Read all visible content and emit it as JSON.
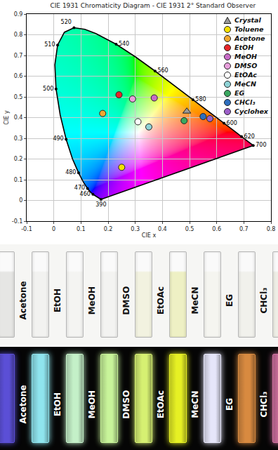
{
  "chart_data": {
    "type": "scatter",
    "title": "CIE 1931 Chromaticity Diagram - CIE 1931 2° Standard Observer",
    "x_label": "CIE x",
    "y_label": "CIE y",
    "xlim": [
      -0.1,
      0.8
    ],
    "xticks": [
      -0.1,
      0,
      0.1,
      0.2,
      0.3,
      0.4,
      0.5,
      0.6,
      0.7,
      0.8
    ],
    "ylim": [
      -0.1,
      0.9
    ],
    "yticks": [
      -0.1,
      0,
      0.1,
      0.2,
      0.3,
      0.4,
      0.5,
      0.6,
      0.7,
      0.8,
      0.9
    ],
    "grid": true,
    "legend": "upper right",
    "locus": {
      "labels": [
        390,
        460,
        null,
        470,
        null,
        480,
        null,
        490,
        null,
        500,
        null,
        510,
        null,
        520,
        null,
        null,
        540,
        null,
        560,
        null,
        580,
        null,
        600,
        null,
        620,
        null,
        700
      ],
      "x": [
        0.1738,
        0.144,
        0.1355,
        0.1241,
        0.1096,
        0.0913,
        0.0687,
        0.0454,
        0.0235,
        0.0082,
        0.0039,
        0.0139,
        0.0389,
        0.0743,
        0.1142,
        0.1547,
        0.2296,
        0.3016,
        0.3731,
        0.4441,
        0.5125,
        0.5752,
        0.627,
        0.6658,
        0.6915,
        0.719,
        0.7347
      ],
      "y": [
        0.0049,
        0.0297,
        0.0399,
        0.0578,
        0.0868,
        0.1327,
        0.2007,
        0.295,
        0.4127,
        0.5384,
        0.6548,
        0.7502,
        0.812,
        0.8338,
        0.8262,
        0.8059,
        0.7543,
        0.6923,
        0.6245,
        0.5547,
        0.4866,
        0.4242,
        0.3725,
        0.334,
        0.3083,
        0.2809,
        0.2653
      ]
    },
    "series": [
      {
        "name": "Crystal",
        "color": "#9a9a9a",
        "marker": "triangle-up",
        "x": [
          0.49
        ],
        "y": [
          0.43
        ]
      },
      {
        "name": "Toluene",
        "color": "#f5e000",
        "marker": "circle",
        "x": [
          0.25
        ],
        "y": [
          0.16
        ]
      },
      {
        "name": "Acetone",
        "color": "#f0a830",
        "marker": "circle",
        "x": [
          0.18
        ],
        "y": [
          0.42
        ]
      },
      {
        "name": "EtOH",
        "color": "#e8262a",
        "marker": "circle",
        "x": [
          0.24
        ],
        "y": [
          0.51
        ]
      },
      {
        "name": "MeOH",
        "color": "#c86cc8",
        "marker": "circle",
        "x": [
          0.37
        ],
        "y": [
          0.495
        ]
      },
      {
        "name": "DMSO",
        "color": "#e8a0dc",
        "marker": "circle",
        "x": [
          0.29
        ],
        "y": [
          0.49
        ]
      },
      {
        "name": "EtOAc",
        "color": "#ffffff",
        "marker": "circle",
        "x": [
          0.31
        ],
        "y": [
          0.38
        ]
      },
      {
        "name": "MeCN",
        "color": "#8fd3d6",
        "marker": "circle",
        "x": [
          0.35
        ],
        "y": [
          0.355
        ]
      },
      {
        "name": "EG",
        "color": "#3aa860",
        "marker": "circle",
        "x": [
          0.48
        ],
        "y": [
          0.385
        ]
      },
      {
        "name": "CHCl₃",
        "color": "#2e6fbf",
        "marker": "circle",
        "x": [
          0.55
        ],
        "y": [
          0.405
        ]
      },
      {
        "name": "Cyclohex",
        "color": "#9d5fc9",
        "marker": "circle",
        "x": [
          0.575
        ],
        "y": [
          0.395
        ]
      }
    ]
  },
  "photos": [
    {
      "cuvettes": [
        {
          "label": null,
          "color": "#e6e6e4"
        },
        {
          "label": "Acetone",
          "color": "#f2f2f0"
        },
        {
          "label": "EtOH",
          "color": "#f4f4f2"
        },
        {
          "label": "MeOH",
          "color": "#f3f3f1"
        },
        {
          "label": "DMSO",
          "color": "#f2f2e0"
        },
        {
          "label": "EtOAc",
          "color": "#eef0c4"
        },
        {
          "label": "MeCN",
          "color": "#f5f5f0"
        },
        {
          "label": "EG",
          "color": "#f1f1ec"
        },
        {
          "label": "CHCl₃",
          "color": "#eeeee6"
        }
      ]
    },
    {
      "cuvettes": [
        {
          "label": null,
          "color": "#5b4fd6"
        },
        {
          "label": "Acetone",
          "color": "#8fe4ee"
        },
        {
          "label": "EtOH",
          "color": "#c4f0c8"
        },
        {
          "label": "MeOH",
          "color": "#c8f49a"
        },
        {
          "label": "DMSO",
          "color": "#d6f072"
        },
        {
          "label": "EtOAc",
          "color": "#e6f024"
        },
        {
          "label": "MeCN",
          "color": "#e6e6fa"
        },
        {
          "label": "EG",
          "color": "#d88a40"
        },
        {
          "label": "CHCl₃",
          "color": "#d070a0"
        }
      ]
    }
  ]
}
